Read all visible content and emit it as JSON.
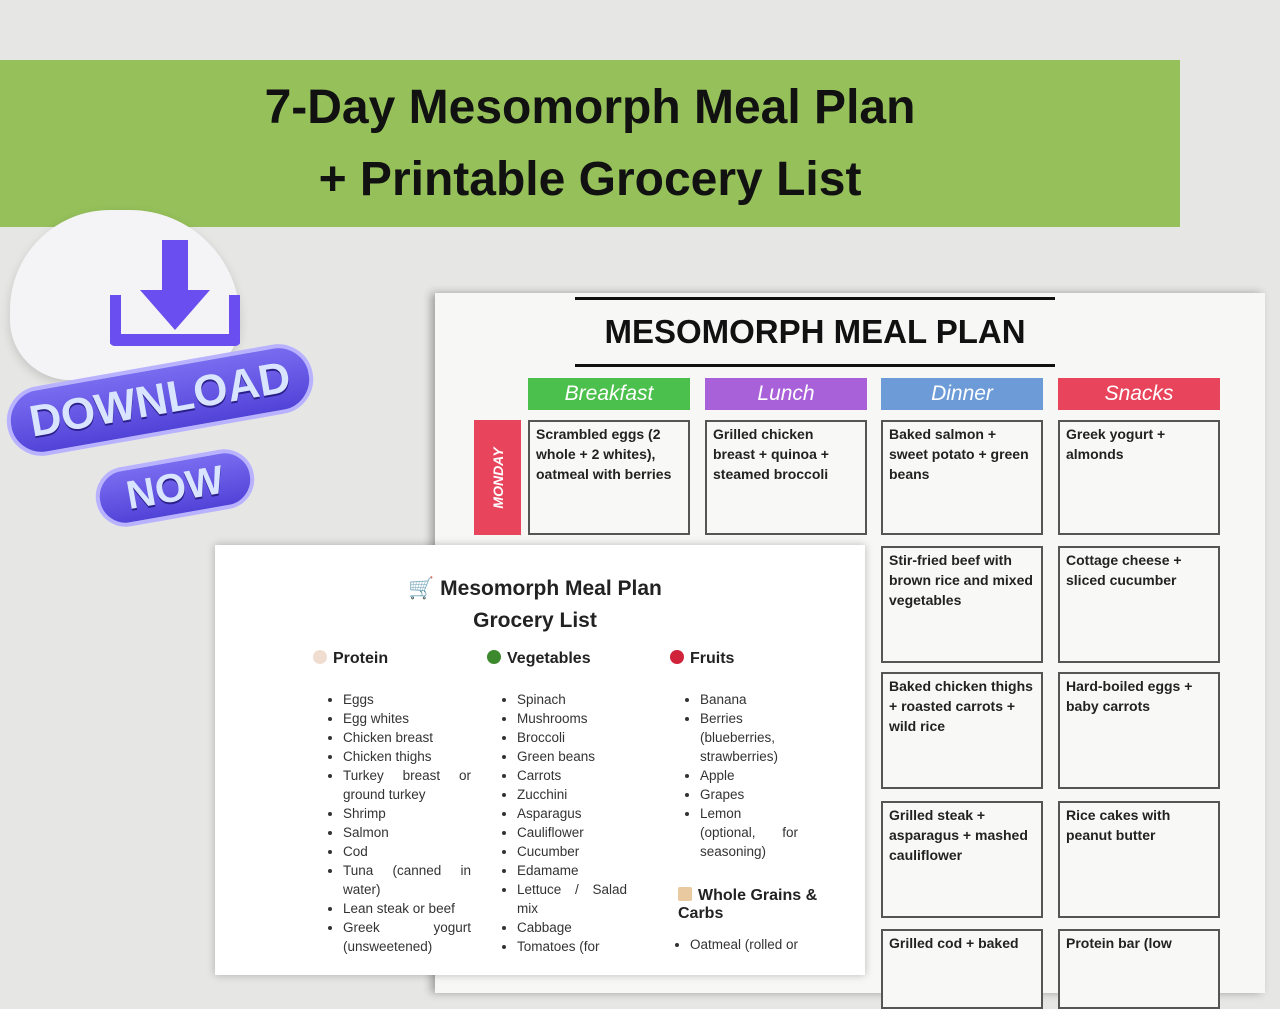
{
  "banner": {
    "line1": "7-Day Mesomorph Meal Plan",
    "line2": "+ Printable Grocery List"
  },
  "download": {
    "line1": "DOWNLOAD",
    "line2": "NOW"
  },
  "meal_plan": {
    "title": "MESOMORPH MEAL PLAN",
    "columns": [
      "Breakfast",
      "Lunch",
      "Dinner",
      "Snacks"
    ],
    "column_colors": [
      "#4cc04c",
      "#a861d8",
      "#6c9bd8",
      "#e8455c"
    ],
    "day": "MONDAY",
    "rows": [
      [
        "Scrambled eggs (2 whole + 2 whites), oatmeal with berries",
        "Grilled chicken breast + quinoa + steamed broccoli",
        "Baked salmon + sweet potato + green beans",
        "Greek yogurt + almonds"
      ],
      [
        "Stir-fried beef with brown rice and mixed vegetables",
        "Cottage cheese + sliced cucumber"
      ],
      [
        "Baked chicken thighs + roasted carrots + wild rice",
        "Hard-boiled eggs + baby carrots"
      ],
      [
        "Grilled steak + asparagus + mashed cauliflower",
        "Rice cakes with peanut butter"
      ],
      [
        "Grilled cod + baked",
        "Protein bar (low"
      ]
    ]
  },
  "grocery": {
    "title1": "Mesomorph Meal Plan",
    "title2": "Grocery List",
    "cart_icon": "shopping-cart-icon",
    "sections": [
      {
        "name": "Protein",
        "items": [
          "Eggs",
          "Egg whites",
          "Chicken breast",
          "Chicken thighs",
          "Turkey breast or ground turkey",
          "Shrimp",
          "Salmon",
          "Cod",
          "Tuna (canned in water)",
          "Lean steak or beef",
          "Greek yogurt (unsweetened)"
        ]
      },
      {
        "name": "Vegetables",
        "items": [
          "Spinach",
          "Mushrooms",
          "Broccoli",
          "Green beans",
          "Carrots",
          "Zucchini",
          "Asparagus",
          "Cauliflower",
          "Cucumber",
          "Edamame",
          "Lettuce / Salad mix",
          "Cabbage",
          "Tomatoes (for"
        ]
      },
      {
        "name": "Fruits",
        "items": [
          "Banana",
          "Berries (blueberries, strawberries)",
          "Apple",
          "Grapes",
          "Lemon (optional, for seasoning)"
        ]
      },
      {
        "name": "Whole Grains & Carbs",
        "items": [
          "Oatmeal (rolled or"
        ]
      }
    ]
  }
}
